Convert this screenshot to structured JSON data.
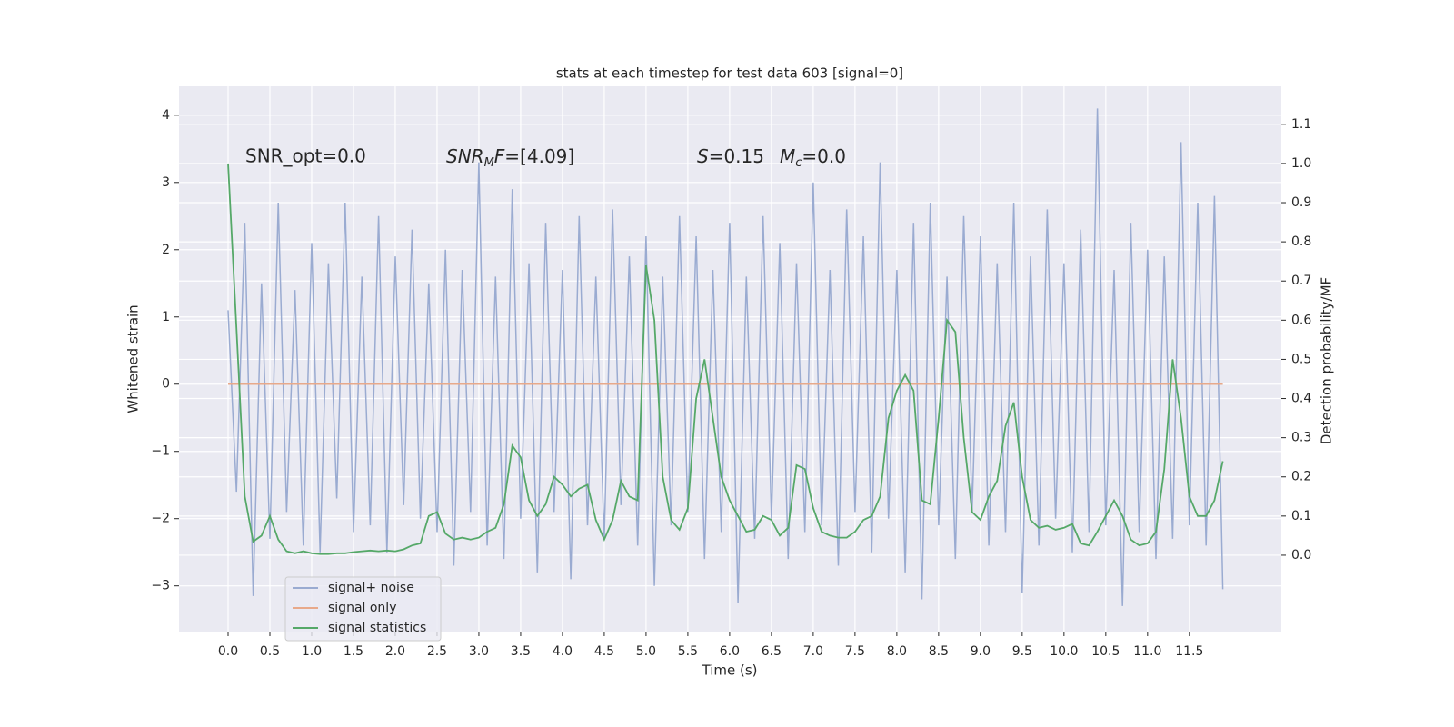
{
  "chart_data": {
    "type": "line",
    "title": "stats at each timestep for test data 603 [signal=0]",
    "xlabel": "Time (s)",
    "ylabel": "Whitened strain",
    "y2label": "Detection probability/MF",
    "annotations": [
      {
        "text": "SNR_opt=0.0"
      },
      {
        "parts": [
          "SNR",
          "M",
          "F",
          "=[4.09]"
        ]
      },
      {
        "parts": [
          "S",
          "=0.15",
          "M",
          "c",
          "=0.0"
        ]
      }
    ],
    "grid": true,
    "legend": "lower left",
    "xlim": [
      -0.587,
      12.6
    ],
    "ylim": [
      -3.68,
      4.43
    ],
    "y2lim": [
      -0.195,
      1.197
    ],
    "xticks": [
      {
        "value": 0,
        "label": "0.0"
      },
      0.5,
      {
        "value": 1,
        "label": "1.0"
      },
      1.5,
      {
        "value": 2,
        "label": "2.0"
      },
      2.5,
      {
        "value": 3,
        "label": "3.0"
      },
      3.5,
      {
        "value": 4,
        "label": "4.0"
      },
      4.5,
      {
        "value": 5,
        "label": "5.0"
      },
      5.5,
      {
        "value": 6,
        "label": "6.0"
      },
      6.5,
      {
        "value": 7,
        "label": "7.0"
      },
      7.5,
      {
        "value": 8,
        "label": "8.0"
      },
      8.5,
      {
        "value": 9,
        "label": "9.0"
      },
      9.5,
      {
        "value": 10,
        "label": "10.0"
      },
      10.5,
      {
        "value": 11,
        "label": "11.0"
      },
      11.5
    ],
    "yticks": [
      -3,
      -2,
      -1,
      0,
      1,
      2,
      3,
      4
    ],
    "y2ticks": [
      {
        "value": 0,
        "label": "0.0"
      },
      0.1,
      0.2,
      0.3,
      0.4,
      0.5,
      0.6,
      0.7,
      0.8,
      0.9,
      {
        "value": 1,
        "label": "1.0"
      },
      1.1
    ],
    "x": [
      0.0,
      0.1,
      0.2,
      0.3,
      0.4,
      0.5,
      0.6,
      0.7,
      0.8,
      0.9,
      1.0,
      1.1,
      1.2,
      1.3,
      1.4,
      1.5,
      1.6,
      1.7,
      1.8,
      1.9,
      2.0,
      2.1,
      2.2,
      2.3,
      2.4,
      2.5,
      2.6,
      2.7,
      2.8,
      2.9,
      3.0,
      3.1,
      3.2,
      3.3,
      3.4,
      3.5,
      3.6,
      3.7,
      3.8,
      3.9,
      4.0,
      4.1,
      4.2,
      4.3,
      4.4,
      4.5,
      4.6,
      4.7,
      4.8,
      4.9,
      5.0,
      5.1,
      5.2,
      5.3,
      5.4,
      5.5,
      5.6,
      5.7,
      5.8,
      5.9,
      6.0,
      6.1,
      6.2,
      6.3,
      6.4,
      6.5,
      6.6,
      6.7,
      6.8,
      6.9,
      7.0,
      7.1,
      7.2,
      7.3,
      7.4,
      7.5,
      7.6,
      7.7,
      7.8,
      7.9,
      8.0,
      8.1,
      8.2,
      8.3,
      8.4,
      8.5,
      8.6,
      8.7,
      8.8,
      8.9,
      9.0,
      9.1,
      9.2,
      9.3,
      9.4,
      9.5,
      9.6,
      9.7,
      9.8,
      9.9,
      10.0,
      10.1,
      10.2,
      10.3,
      10.4,
      10.5,
      10.6,
      10.7,
      10.8,
      10.9,
      11.0,
      11.1,
      11.2,
      11.3,
      11.4,
      11.5,
      11.6,
      11.7,
      11.8,
      11.9
    ],
    "series": [
      {
        "name": "signal+ noise",
        "color": "#9aabd1",
        "values": [
          1.1,
          -1.6,
          2.4,
          -3.15,
          1.5,
          -2.3,
          2.7,
          -1.9,
          1.4,
          -2.4,
          2.1,
          -2.5,
          1.8,
          -1.7,
          2.7,
          -2.2,
          1.6,
          -2.1,
          2.5,
          -2.5,
          1.9,
          -1.8,
          2.3,
          -2.0,
          1.5,
          -2.2,
          2.0,
          -2.7,
          1.7,
          -1.9,
          3.3,
          -2.4,
          1.6,
          -2.6,
          2.9,
          -2.0,
          1.8,
          -2.8,
          2.4,
          -1.9,
          1.7,
          -2.9,
          2.5,
          -2.1,
          1.6,
          -2.3,
          2.6,
          -1.8,
          1.9,
          -2.4,
          2.2,
          -3.0,
          1.6,
          -2.1,
          2.5,
          -1.9,
          2.2,
          -2.6,
          1.7,
          -2.2,
          2.4,
          -3.25,
          1.6,
          -2.3,
          2.5,
          -2.0,
          2.1,
          -2.6,
          1.8,
          -2.2,
          3.0,
          -2.1,
          1.7,
          -2.7,
          2.6,
          -1.9,
          2.2,
          -2.5,
          3.3,
          -2.0,
          1.7,
          -2.8,
          2.4,
          -3.2,
          2.7,
          -2.1,
          1.6,
          -2.6,
          2.5,
          -1.9,
          2.2,
          -2.4,
          1.8,
          -2.2,
          2.7,
          -3.1,
          1.9,
          -2.4,
          2.6,
          -2.0,
          1.8,
          -2.5,
          2.3,
          -2.2,
          4.1,
          -2.1,
          1.7,
          -3.3,
          2.4,
          -2.2,
          2.0,
          -2.6,
          1.9,
          -2.3,
          3.6,
          -2.1,
          2.7,
          -2.4,
          2.8,
          -3.05
        ]
      },
      {
        "name": "signal only",
        "color": "#e8a98a",
        "values": [
          0,
          0,
          0,
          0,
          0,
          0,
          0,
          0,
          0,
          0,
          0,
          0,
          0,
          0,
          0,
          0,
          0,
          0,
          0,
          0,
          0,
          0,
          0,
          0,
          0,
          0,
          0,
          0,
          0,
          0,
          0,
          0,
          0,
          0,
          0,
          0,
          0,
          0,
          0,
          0,
          0,
          0,
          0,
          0,
          0,
          0,
          0,
          0,
          0,
          0,
          0,
          0,
          0,
          0,
          0,
          0,
          0,
          0,
          0,
          0,
          0,
          0,
          0,
          0,
          0,
          0,
          0,
          0,
          0,
          0,
          0,
          0,
          0,
          0,
          0,
          0,
          0,
          0,
          0,
          0,
          0,
          0,
          0,
          0,
          0,
          0,
          0,
          0,
          0,
          0,
          0,
          0,
          0,
          0,
          0,
          0,
          0,
          0,
          0,
          0,
          0,
          0,
          0,
          0,
          0,
          0,
          0,
          0,
          0,
          0,
          0,
          0,
          0,
          0,
          0,
          0,
          0,
          0,
          0,
          0
        ]
      },
      {
        "name": "signal statistics",
        "color": "#55a868",
        "axis": "y2",
        "values": [
          1.0,
          0.58,
          0.15,
          0.035,
          0.05,
          0.1,
          0.04,
          0.01,
          0.005,
          0.01,
          0.005,
          0.003,
          0.003,
          0.005,
          0.005,
          0.008,
          0.01,
          0.012,
          0.01,
          0.012,
          0.01,
          0.015,
          0.025,
          0.03,
          0.1,
          0.11,
          0.055,
          0.04,
          0.045,
          0.04,
          0.045,
          0.06,
          0.07,
          0.13,
          0.28,
          0.25,
          0.14,
          0.1,
          0.13,
          0.2,
          0.18,
          0.15,
          0.17,
          0.18,
          0.09,
          0.04,
          0.09,
          0.19,
          0.15,
          0.14,
          0.74,
          0.6,
          0.2,
          0.09,
          0.065,
          0.12,
          0.4,
          0.5,
          0.35,
          0.2,
          0.14,
          0.1,
          0.06,
          0.065,
          0.1,
          0.09,
          0.05,
          0.07,
          0.23,
          0.22,
          0.12,
          0.06,
          0.05,
          0.045,
          0.045,
          0.06,
          0.09,
          0.1,
          0.15,
          0.35,
          0.42,
          0.46,
          0.42,
          0.14,
          0.13,
          0.35,
          0.6,
          0.57,
          0.3,
          0.11,
          0.09,
          0.15,
          0.19,
          0.33,
          0.39,
          0.2,
          0.09,
          0.07,
          0.075,
          0.065,
          0.07,
          0.08,
          0.03,
          0.025,
          0.06,
          0.1,
          0.14,
          0.1,
          0.04,
          0.025,
          0.03,
          0.06,
          0.22,
          0.5,
          0.35,
          0.15,
          0.1,
          0.1,
          0.14,
          0.24
        ]
      }
    ]
  }
}
